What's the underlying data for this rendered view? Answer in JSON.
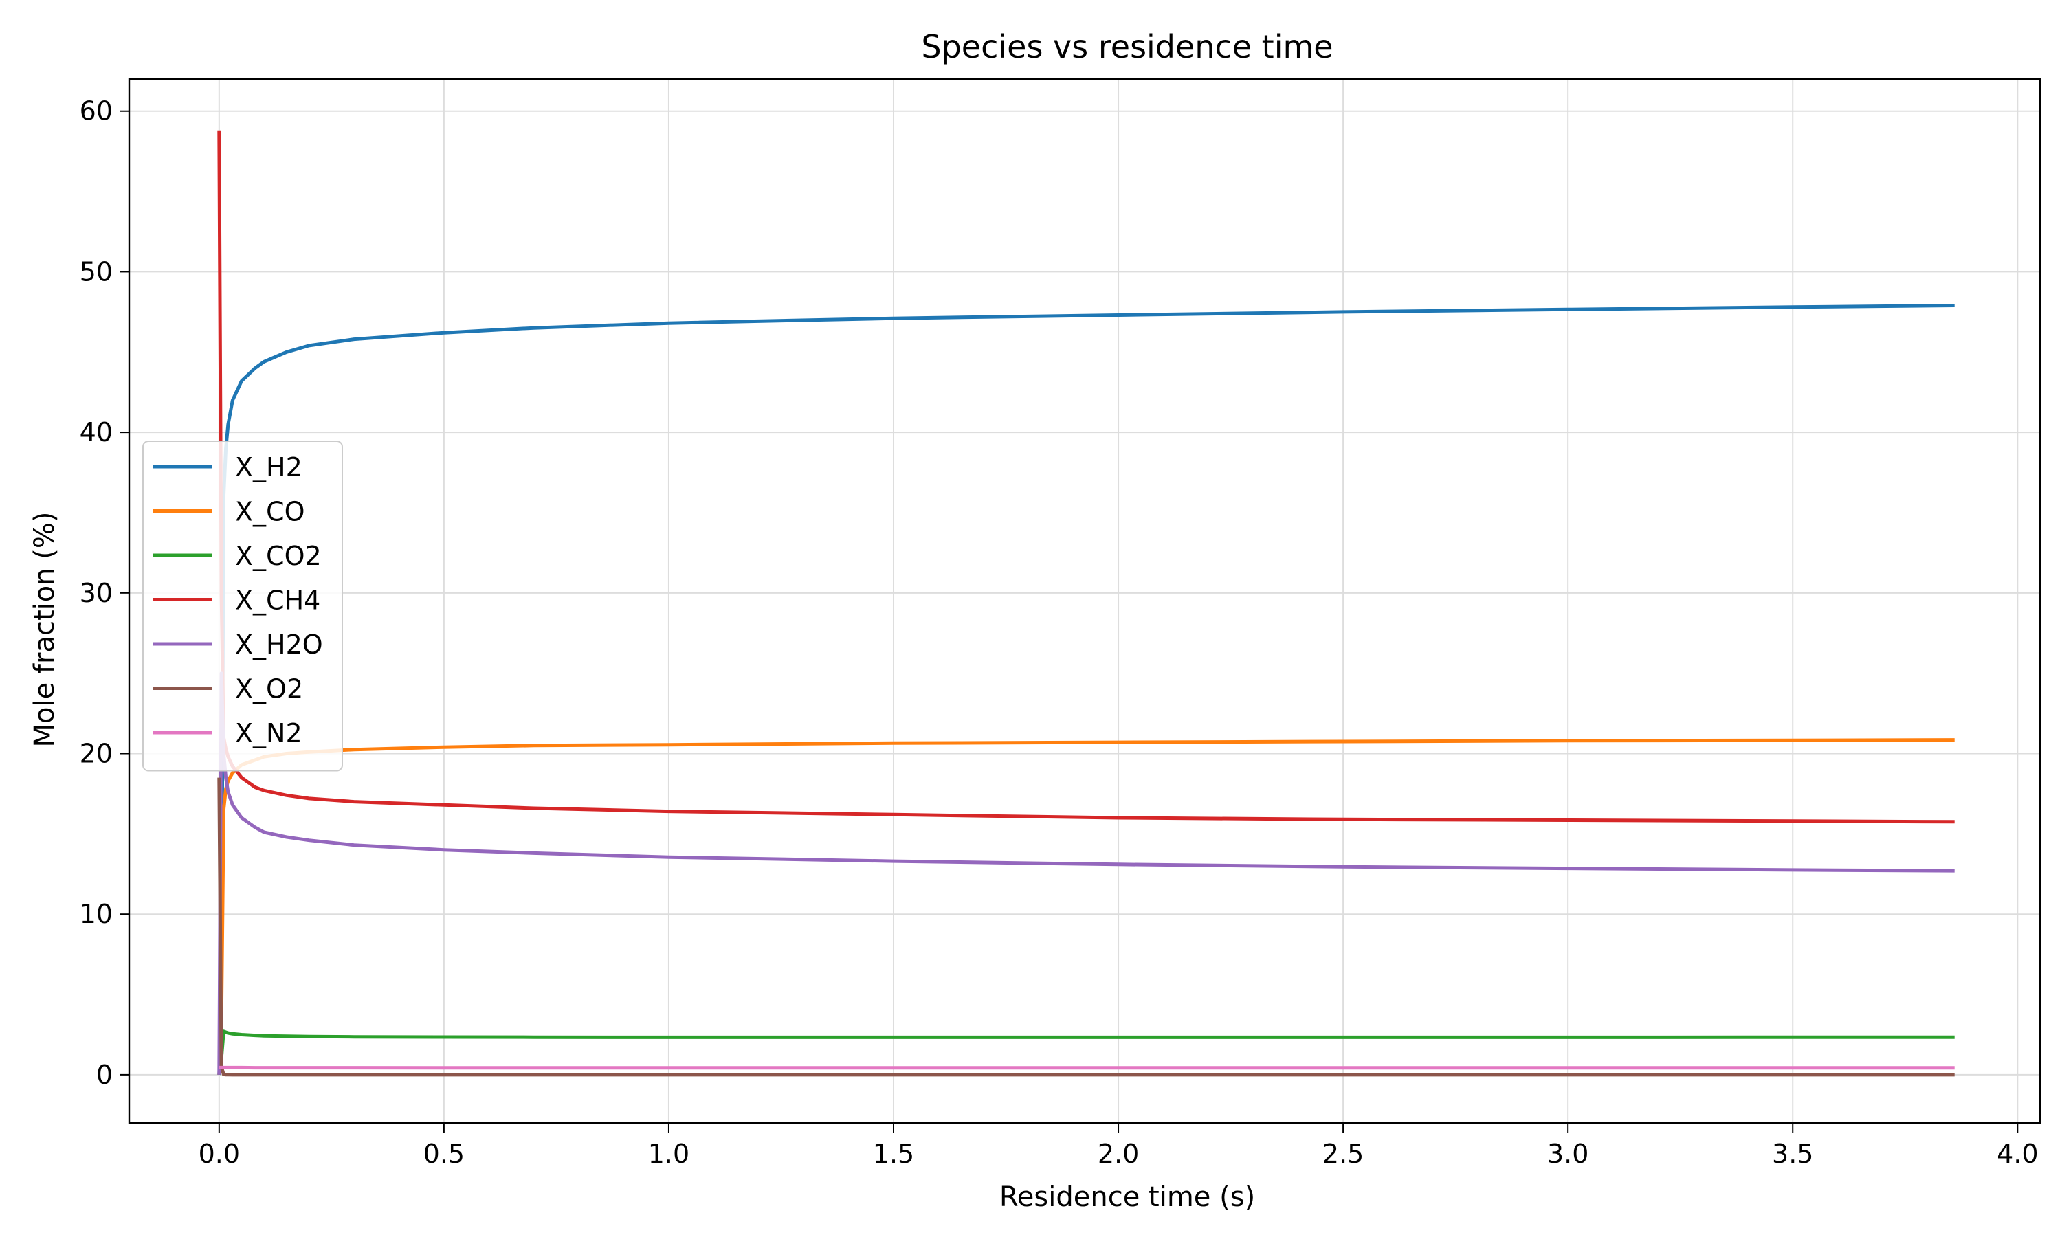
{
  "chart_data": {
    "type": "line",
    "title": "Species vs residence time",
    "xlabel": "Residence time (s)",
    "ylabel": "Mole fraction (%)",
    "xlim": [
      -0.2,
      4.05
    ],
    "ylim": [
      -3,
      62
    ],
    "x_ticks": [
      0.0,
      0.5,
      1.0,
      1.5,
      2.0,
      2.5,
      3.0,
      3.5,
      4.0
    ],
    "x_tick_labels": [
      "0.0",
      "0.5",
      "1.0",
      "1.5",
      "2.0",
      "2.5",
      "3.0",
      "3.5",
      "4.0"
    ],
    "y_ticks": [
      0,
      10,
      20,
      30,
      40,
      50,
      60
    ],
    "y_tick_labels": [
      "0",
      "10",
      "20",
      "30",
      "40",
      "50",
      "60"
    ],
    "grid": true,
    "legend_position": "center-left",
    "x": [
      0.0,
      0.005,
      0.01,
      0.015,
      0.02,
      0.03,
      0.05,
      0.08,
      0.1,
      0.15,
      0.2,
      0.3,
      0.5,
      0.7,
      1.0,
      1.5,
      2.0,
      2.5,
      3.0,
      3.5,
      3.86
    ],
    "series": [
      {
        "name": "X_H2",
        "color": "#1f77b4",
        "values": [
          0.0,
          5.0,
          36.0,
          39.0,
          40.5,
          42.0,
          43.2,
          44.0,
          44.4,
          45.0,
          45.4,
          45.8,
          46.2,
          46.5,
          46.8,
          47.1,
          47.3,
          47.5,
          47.65,
          47.8,
          47.9
        ]
      },
      {
        "name": "X_CO",
        "color": "#ff7f0e",
        "values": [
          0.0,
          3.0,
          16.5,
          17.8,
          18.3,
          18.8,
          19.3,
          19.6,
          19.8,
          20.0,
          20.1,
          20.25,
          20.4,
          20.5,
          20.55,
          20.65,
          20.7,
          20.75,
          20.8,
          20.82,
          20.85
        ]
      },
      {
        "name": "X_CO2",
        "color": "#2ca02c",
        "values": [
          0.0,
          1.0,
          2.7,
          2.65,
          2.6,
          2.55,
          2.5,
          2.45,
          2.42,
          2.4,
          2.38,
          2.36,
          2.35,
          2.34,
          2.33,
          2.33,
          2.33,
          2.33,
          2.33,
          2.34,
          2.34
        ]
      },
      {
        "name": "X_CH4",
        "color": "#d62728",
        "values": [
          58.8,
          30.0,
          21.0,
          20.3,
          19.8,
          19.2,
          18.5,
          17.9,
          17.7,
          17.4,
          17.2,
          17.0,
          16.8,
          16.6,
          16.4,
          16.2,
          16.0,
          15.9,
          15.85,
          15.8,
          15.75
        ]
      },
      {
        "name": "X_H2O",
        "color": "#9467bd",
        "values": [
          0.0,
          25.0,
          20.0,
          18.5,
          17.6,
          16.8,
          16.0,
          15.4,
          15.1,
          14.8,
          14.6,
          14.3,
          14.0,
          13.8,
          13.55,
          13.3,
          13.1,
          12.95,
          12.85,
          12.75,
          12.7
        ]
      },
      {
        "name": "X_O2",
        "color": "#8c564b",
        "values": [
          18.5,
          0.5,
          0.02,
          0.01,
          0.01,
          0.0,
          0.0,
          0.0,
          0.0,
          0.0,
          0.0,
          0.0,
          0.0,
          0.0,
          0.0,
          0.0,
          0.0,
          0.0,
          0.0,
          0.0,
          0.0
        ]
      },
      {
        "name": "X_N2",
        "color": "#e377c2",
        "values": [
          0.45,
          0.45,
          0.45,
          0.45,
          0.45,
          0.45,
          0.45,
          0.44,
          0.44,
          0.44,
          0.44,
          0.44,
          0.43,
          0.43,
          0.43,
          0.43,
          0.43,
          0.43,
          0.43,
          0.43,
          0.43
        ]
      }
    ]
  }
}
